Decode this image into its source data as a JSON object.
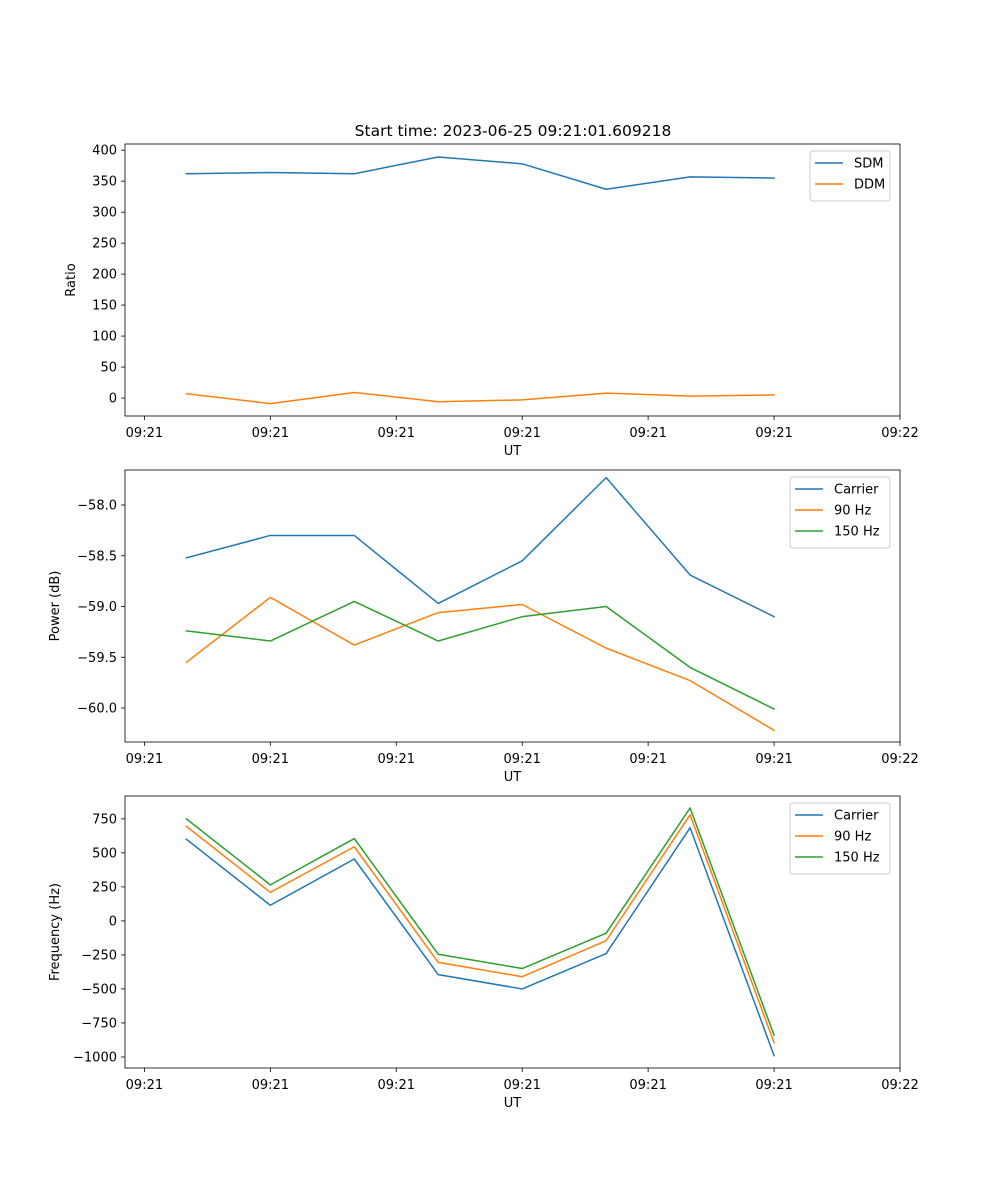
{
  "figure_title": "Start time: 2023-06-25 09:21:01.609218",
  "chart_data": [
    {
      "type": "line",
      "title": "Start time: 2023-06-25 09:21:01.609218",
      "xlabel": "UT",
      "ylabel": "Ratio",
      "x": [
        1,
        2,
        3,
        4,
        5,
        6,
        7,
        8
      ],
      "xlim": [
        0.269,
        9.5
      ],
      "xticks": [
        0.5,
        2.0,
        3.5,
        5.0,
        6.5,
        8.0,
        9.5
      ],
      "xtick_labels": [
        "09:21",
        "09:21",
        "09:21",
        "09:21",
        "09:21",
        "09:21",
        "09:22"
      ],
      "ylim": [
        -29,
        410
      ],
      "yticks": [
        0,
        50,
        100,
        150,
        200,
        250,
        300,
        350,
        400
      ],
      "ytick_labels": [
        "0",
        "50",
        "100",
        "150",
        "200",
        "250",
        "300",
        "350",
        "400"
      ],
      "legend_position": "upper-right",
      "series": [
        {
          "name": "SDM",
          "color": "#1f77b4",
          "values": [
            362,
            364,
            362,
            389,
            378,
            337,
            357,
            355
          ]
        },
        {
          "name": "DDM",
          "color": "#ff7f0e",
          "values": [
            7,
            -9,
            9,
            -6,
            -3,
            8,
            3,
            5
          ]
        }
      ]
    },
    {
      "type": "line",
      "title": "",
      "xlabel": "UT",
      "ylabel": "Power (dB)",
      "x": [
        1,
        2,
        3,
        4,
        5,
        6,
        7,
        8
      ],
      "xlim": [
        0.269,
        9.5
      ],
      "xticks": [
        0.5,
        2.0,
        3.5,
        5.0,
        6.5,
        8.0,
        9.5
      ],
      "xtick_labels": [
        "09:21",
        "09:21",
        "09:21",
        "09:21",
        "09:21",
        "09:21",
        "09:22"
      ],
      "ylim": [
        -60.335,
        -57.655
      ],
      "yticks": [
        -60.0,
        -59.5,
        -59.0,
        -58.5,
        -58.0
      ],
      "ytick_labels": [
        "−60.0",
        "−59.5",
        "−59.0",
        "−58.5",
        "−58.0"
      ],
      "legend_position": "upper-right",
      "series": [
        {
          "name": "Carrier",
          "color": "#1f77b4",
          "values": [
            -58.52,
            -58.3,
            -58.3,
            -58.97,
            -58.55,
            -57.73,
            -58.69,
            -59.1
          ]
        },
        {
          "name": "90 Hz",
          "color": "#ff7f0e",
          "values": [
            -59.55,
            -58.91,
            -59.38,
            -59.06,
            -58.98,
            -59.41,
            -59.73,
            -60.22
          ]
        },
        {
          "name": "150 Hz",
          "color": "#2ca02c",
          "values": [
            -59.24,
            -59.34,
            -58.95,
            -59.34,
            -59.1,
            -59.0,
            -59.6,
            -60.01
          ]
        }
      ]
    },
    {
      "type": "line",
      "title": "",
      "xlabel": "UT",
      "ylabel": "Frequency (Hz)",
      "x": [
        1,
        2,
        3,
        4,
        5,
        6,
        7,
        8
      ],
      "xlim": [
        0.269,
        9.5
      ],
      "xticks": [
        0.5,
        2.0,
        3.5,
        5.0,
        6.5,
        8.0,
        9.5
      ],
      "xtick_labels": [
        "09:21",
        "09:21",
        "09:21",
        "09:21",
        "09:21",
        "09:21",
        "09:22"
      ],
      "ylim": [
        -1081,
        918
      ],
      "yticks": [
        -1000,
        -750,
        -500,
        -250,
        0,
        250,
        500,
        750
      ],
      "ytick_labels": [
        "−1000",
        "−750",
        "−500",
        "−250",
        "0",
        "250",
        "500",
        "750"
      ],
      "legend_position": "upper-right",
      "series": [
        {
          "name": "Carrier",
          "color": "#1f77b4",
          "values": [
            600,
            115,
            455,
            -395,
            -500,
            -240,
            685,
            -990
          ]
        },
        {
          "name": "90 Hz",
          "color": "#ff7f0e",
          "values": [
            695,
            210,
            545,
            -305,
            -410,
            -145,
            780,
            -895
          ]
        },
        {
          "name": "150 Hz",
          "color": "#2ca02c",
          "values": [
            750,
            265,
            605,
            -245,
            -350,
            -90,
            830,
            -840
          ]
        }
      ]
    }
  ]
}
